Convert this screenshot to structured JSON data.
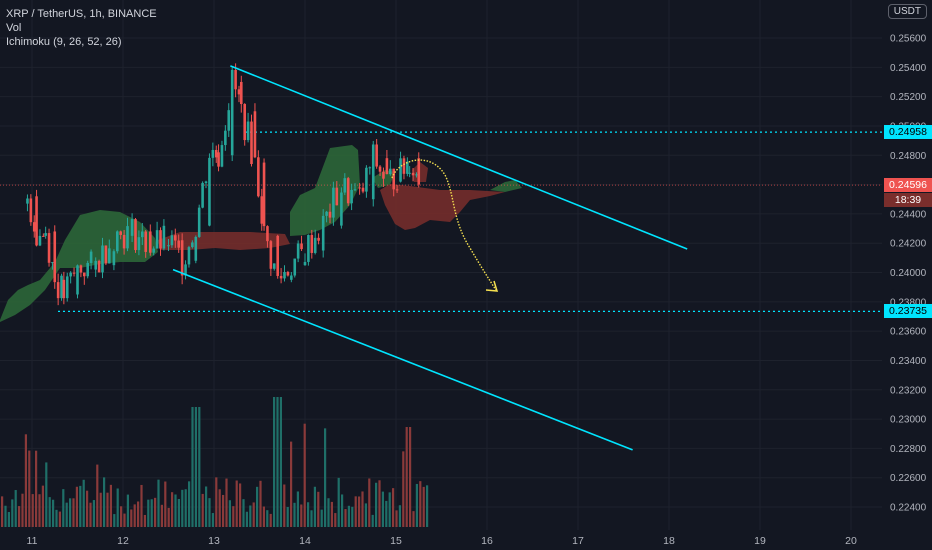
{
  "header": {
    "symbol_line": "XRP / TetherUS, 1h, BINANCE",
    "volume_label": "Vol",
    "ichimoku_label": "Ichimoku (9, 26, 52, 26)"
  },
  "currency_badge": "USDT",
  "price_tags": {
    "resistance": "0.24958",
    "support": "0.23735",
    "last_price": "0.24596",
    "countdown": "18:39"
  },
  "colors": {
    "background": "#131722",
    "up": "#26a69a",
    "down": "#ef5350",
    "cloud_bull": "#2e6b3a",
    "cloud_bear": "#7a2e2c",
    "channel": "#00e5ff",
    "projection": "#f5e050"
  },
  "chart_data": {
    "type": "candlestick",
    "symbol": "XRP / TetherUS",
    "interval": "1h",
    "exchange": "BINANCE",
    "x_ticks": [
      "11",
      "12",
      "13",
      "14",
      "15",
      "16",
      "17",
      "18",
      "19",
      "20"
    ],
    "y_ticks": [
      "0.25600",
      "0.25400",
      "0.25200",
      "0.25000",
      "0.24800",
      "0.24600",
      "0.24400",
      "0.24200",
      "0.24000",
      "0.23800",
      "0.23600",
      "0.23400",
      "0.23200",
      "0.23000",
      "0.22800",
      "0.22600",
      "0.22400"
    ],
    "ylim": [
      0.2235,
      0.2575
    ],
    "x_range_days": [
      10.8,
      20.5
    ],
    "candles_estimated": [
      {
        "t": 10.95,
        "o": 0.2447,
        "h": 0.2457,
        "l": 0.244,
        "c": 0.2452
      },
      {
        "t": 11.05,
        "o": 0.2452,
        "h": 0.2455,
        "l": 0.2418,
        "c": 0.2425
      },
      {
        "t": 11.15,
        "o": 0.2425,
        "h": 0.2432,
        "l": 0.2412,
        "c": 0.2428
      },
      {
        "t": 11.25,
        "o": 0.2428,
        "h": 0.243,
        "l": 0.239,
        "c": 0.2395
      },
      {
        "t": 11.35,
        "o": 0.2395,
        "h": 0.24,
        "l": 0.237,
        "c": 0.2385
      },
      {
        "t": 11.5,
        "o": 0.2385,
        "h": 0.2408,
        "l": 0.238,
        "c": 0.2402
      },
      {
        "t": 11.7,
        "o": 0.2402,
        "h": 0.2412,
        "l": 0.2395,
        "c": 0.2405
      },
      {
        "t": 11.9,
        "o": 0.2405,
        "h": 0.243,
        "l": 0.24,
        "c": 0.2425
      },
      {
        "t": 12.1,
        "o": 0.2425,
        "h": 0.2435,
        "l": 0.2418,
        "c": 0.2428
      },
      {
        "t": 12.3,
        "o": 0.2428,
        "h": 0.2432,
        "l": 0.2412,
        "c": 0.2418
      },
      {
        "t": 12.5,
        "o": 0.2418,
        "h": 0.243,
        "l": 0.241,
        "c": 0.2422
      },
      {
        "t": 12.65,
        "o": 0.2422,
        "h": 0.2425,
        "l": 0.2402,
        "c": 0.2408
      },
      {
        "t": 12.8,
        "o": 0.2408,
        "h": 0.2435,
        "l": 0.2406,
        "c": 0.2432
      },
      {
        "t": 12.95,
        "o": 0.2432,
        "h": 0.2488,
        "l": 0.243,
        "c": 0.2482
      },
      {
        "t": 13.05,
        "o": 0.2482,
        "h": 0.249,
        "l": 0.2475,
        "c": 0.248
      },
      {
        "t": 13.2,
        "o": 0.248,
        "h": 0.2535,
        "l": 0.2478,
        "c": 0.253
      },
      {
        "t": 13.3,
        "o": 0.253,
        "h": 0.2532,
        "l": 0.2505,
        "c": 0.251
      },
      {
        "t": 13.45,
        "o": 0.251,
        "h": 0.2512,
        "l": 0.247,
        "c": 0.2475
      },
      {
        "t": 13.55,
        "o": 0.2475,
        "h": 0.2478,
        "l": 0.242,
        "c": 0.2425
      },
      {
        "t": 13.7,
        "o": 0.2425,
        "h": 0.2428,
        "l": 0.2385,
        "c": 0.2395
      },
      {
        "t": 13.85,
        "o": 0.2395,
        "h": 0.241,
        "l": 0.2378,
        "c": 0.2405
      },
      {
        "t": 14.0,
        "o": 0.2405,
        "h": 0.242,
        "l": 0.2395,
        "c": 0.2415
      },
      {
        "t": 14.2,
        "o": 0.2415,
        "h": 0.244,
        "l": 0.241,
        "c": 0.2432
      },
      {
        "t": 14.4,
        "o": 0.2432,
        "h": 0.2462,
        "l": 0.2428,
        "c": 0.2458
      },
      {
        "t": 14.6,
        "o": 0.2458,
        "h": 0.2472,
        "l": 0.244,
        "c": 0.245
      },
      {
        "t": 14.75,
        "o": 0.245,
        "h": 0.2482,
        "l": 0.2445,
        "c": 0.2478
      },
      {
        "t": 14.9,
        "o": 0.2478,
        "h": 0.2485,
        "l": 0.2455,
        "c": 0.2462
      },
      {
        "t": 15.05,
        "o": 0.2462,
        "h": 0.2475,
        "l": 0.2452,
        "c": 0.2468
      },
      {
        "t": 15.15,
        "o": 0.2468,
        "h": 0.2488,
        "l": 0.2465,
        "c": 0.2478
      },
      {
        "t": 15.25,
        "o": 0.2478,
        "h": 0.2482,
        "l": 0.2458,
        "c": 0.246
      }
    ],
    "horizontal_levels": [
      0.24958,
      0.23735
    ],
    "last_price": 0.24596,
    "channel_upper": [
      [
        13.18,
        0.2541
      ],
      [
        18.2,
        0.2416
      ]
    ],
    "channel_lower": [
      [
        12.55,
        0.2402
      ],
      [
        17.6,
        0.2279
      ]
    ]
  }
}
